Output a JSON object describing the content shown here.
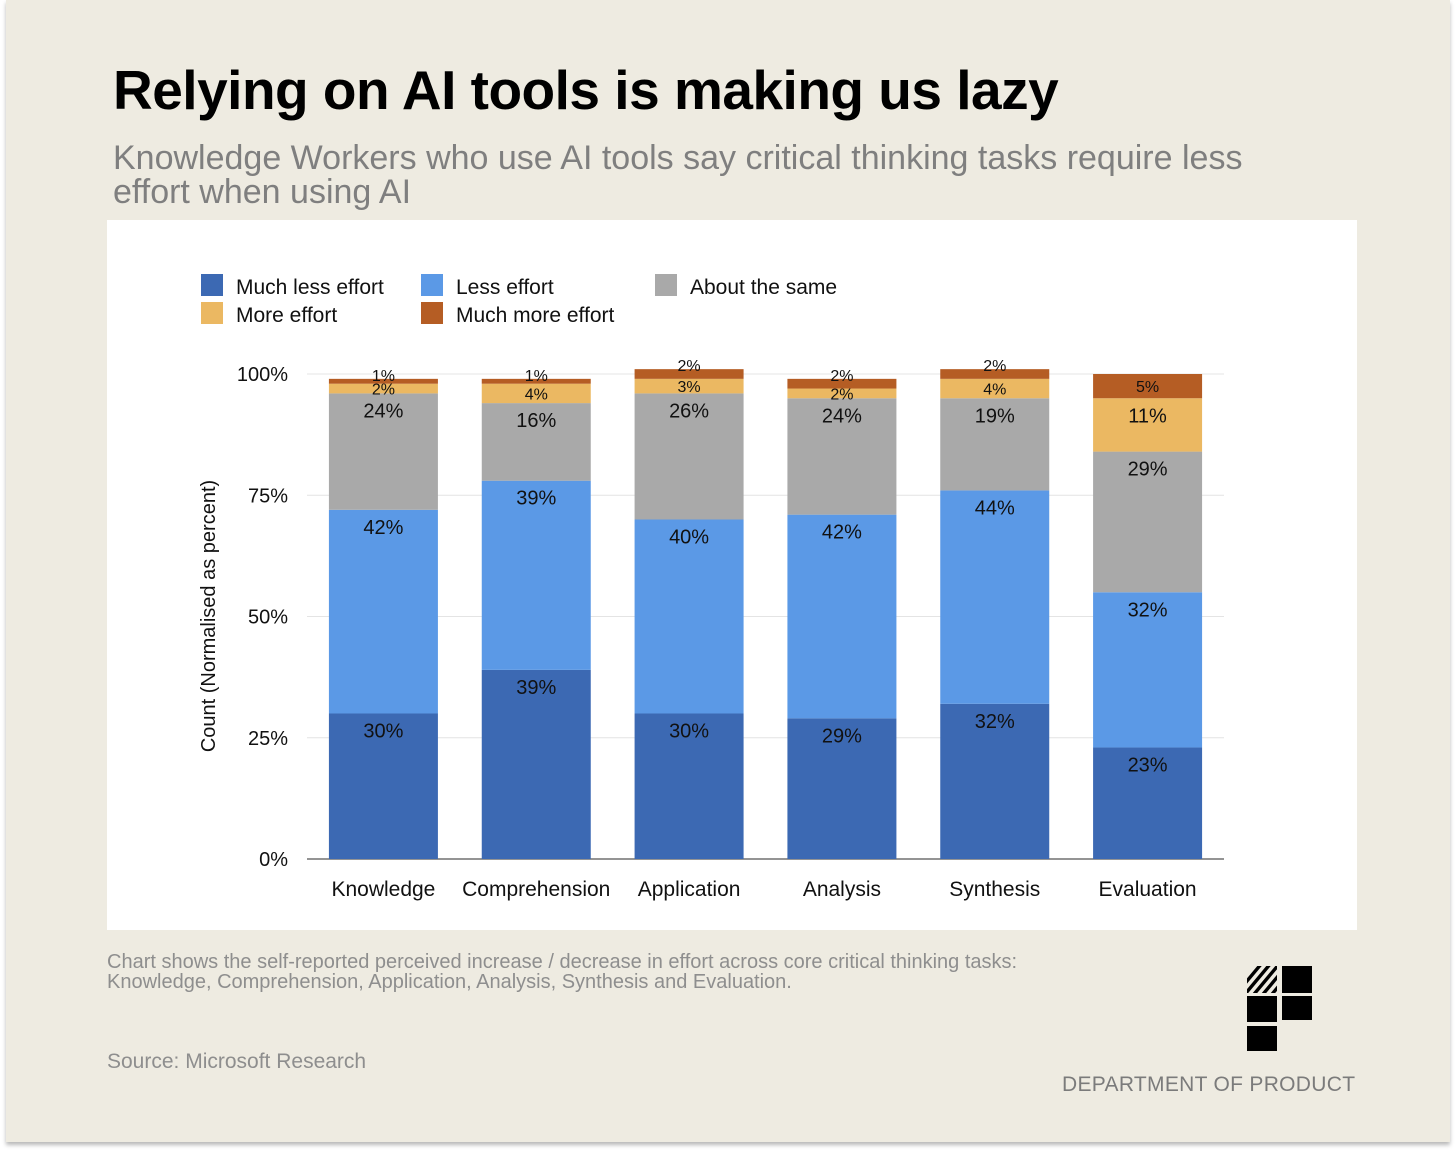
{
  "title": "Relying on AI tools is making us lazy",
  "subtitle": "Knowledge Workers who use AI tools say critical thinking tasks require less effort when using AI",
  "caption": "Chart shows the self-reported perceived increase / decrease in effort across core critical thinking tasks: Knowledge, Comprehension, Application, Analysis, Synthesis and Evaluation.",
  "source": "Source: Microsoft Research",
  "brand": {
    "name": "DEPARTMENT OF PRODUCT",
    "logo_icon": "department-of-product-logo-icon"
  },
  "chart_data": {
    "type": "bar",
    "stacked": true,
    "title": "",
    "xlabel": "",
    "ylabel": "Count (Normalised as percent)",
    "ylim": [
      0,
      100
    ],
    "yticks": [
      0,
      25,
      50,
      75,
      100
    ],
    "ytick_labels": [
      "0%",
      "25%",
      "50%",
      "75%",
      "100%"
    ],
    "grid": true,
    "legend_position": "top-left",
    "categories": [
      "Knowledge",
      "Comprehension",
      "Application",
      "Analysis",
      "Synthesis",
      "Evaluation"
    ],
    "series": [
      {
        "name": "Much less effort",
        "color": "#3c69b3",
        "values": [
          30,
          39,
          30,
          29,
          32,
          23
        ],
        "labels": [
          "30%",
          "39%",
          "30%",
          "29%",
          "32%",
          "23%"
        ]
      },
      {
        "name": "Less effort",
        "color": "#5b99e6",
        "values": [
          42,
          39,
          40,
          42,
          44,
          32
        ],
        "labels": [
          "42%",
          "39%",
          "40%",
          "42%",
          "44%",
          "32%"
        ]
      },
      {
        "name": "About the same",
        "color": "#a9a9a9",
        "values": [
          24,
          16,
          26,
          24,
          19,
          29
        ],
        "labels": [
          "24%",
          "16%",
          "26%",
          "24%",
          "19%",
          "29%"
        ]
      },
      {
        "name": "More effort",
        "color": "#ebb862",
        "values": [
          2,
          4,
          3,
          2,
          4,
          11
        ],
        "labels": [
          "2%",
          "4%",
          "3%",
          "2%",
          "4%",
          "11%"
        ]
      },
      {
        "name": "Much more effort",
        "color": "#b55d24",
        "values": [
          1,
          1,
          2,
          2,
          2,
          5
        ],
        "labels": [
          "1%",
          "1%",
          "2%",
          "2%",
          "2%",
          "5%"
        ]
      }
    ]
  }
}
